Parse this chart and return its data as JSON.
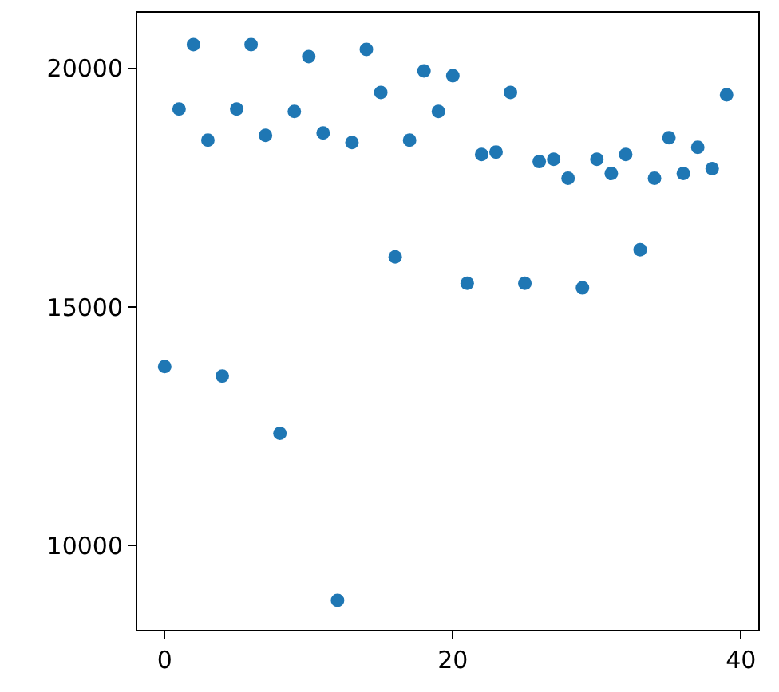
{
  "chart_data": {
    "type": "scatter",
    "marker": "circle",
    "x": [
      0,
      1,
      2,
      3,
      4,
      5,
      6,
      7,
      8,
      9,
      10,
      11,
      12,
      13,
      14,
      15,
      16,
      17,
      18,
      19,
      20,
      21,
      22,
      23,
      24,
      25,
      26,
      27,
      28,
      29,
      30,
      31,
      32,
      33,
      34,
      35,
      36,
      37,
      38,
      39
    ],
    "series": [
      {
        "color": "#1f77b4",
        "values": [
          13750,
          19150,
          20500,
          18500,
          13550,
          19150,
          20500,
          18600,
          12350,
          19100,
          20250,
          18650,
          8850,
          18450,
          20400,
          19500,
          16050,
          18500,
          19950,
          19100,
          19850,
          15500,
          18200,
          18250,
          19500,
          15500,
          18050,
          18100,
          17700,
          15400,
          18100,
          17800,
          18200,
          16200,
          17700,
          18550,
          17800,
          18350,
          17900,
          19450
        ]
      }
    ],
    "xlim": [
      -1.9,
      41.2
    ],
    "xticks": [
      0,
      20,
      40
    ],
    "ylim": [
      8230,
      21170
    ],
    "yticks": [
      10000,
      15000,
      20000
    ]
  }
}
